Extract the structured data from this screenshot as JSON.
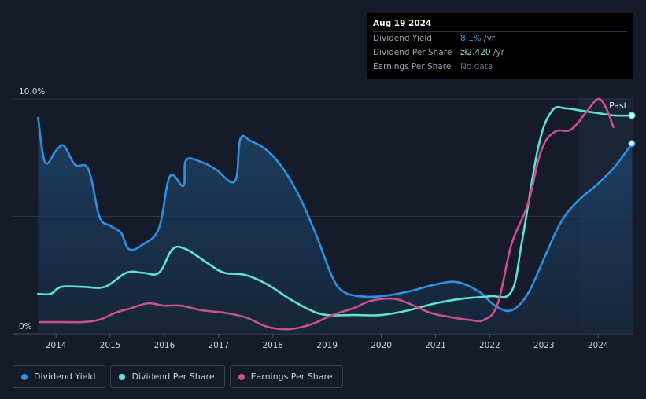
{
  "tooltip": {
    "date": "Aug 19 2024",
    "rows": [
      {
        "label": "Dividend Yield",
        "value": "8.1%",
        "unit": " /yr",
        "value_color": "#3aa0f2"
      },
      {
        "label": "Dividend Per Share",
        "value": "zł2.420",
        "unit": " /yr",
        "value_color": "#6ce6d6"
      },
      {
        "label": "Earnings Per Share",
        "value": "No data",
        "unit": "",
        "value_color": "#6c7380"
      }
    ]
  },
  "legend": [
    {
      "label": "Dividend Yield",
      "color": "#2f8fe0"
    },
    {
      "label": "Dividend Per Share",
      "color": "#5fe3cf"
    },
    {
      "label": "Earnings Per Share",
      "color": "#c94f8e"
    }
  ],
  "colors": {
    "background": "#151b28",
    "yield": "#2f8fe0",
    "yield_fill": "#1b3a5a",
    "dps": "#5fe3cf",
    "eps": "#c94f8e",
    "grid": "#3a4150",
    "past_band": "#1a2738"
  },
  "chart_data": {
    "type": "line",
    "title": "",
    "xlabel": "",
    "ylabel": "",
    "ylim": [
      0,
      10
    ],
    "xlim": [
      2013.65,
      2024.65
    ],
    "y_tick_labels": [
      {
        "value": 10,
        "label": "10.0%"
      },
      {
        "value": 0,
        "label": "0%"
      }
    ],
    "x_tick_labels": [
      "2014",
      "2015",
      "2016",
      "2017",
      "2018",
      "2019",
      "2020",
      "2021",
      "2022",
      "2023",
      "2024"
    ],
    "x_tick_values": [
      2014,
      2015,
      2016,
      2017,
      2018,
      2019,
      2020,
      2021,
      2022,
      2023,
      2024
    ],
    "annotation": {
      "label": "Past",
      "x_start": 2023.65
    },
    "series": [
      {
        "name": "Dividend Yield",
        "unit": "%",
        "area": true,
        "x": [
          2013.67,
          2013.8,
          2014.0,
          2014.15,
          2014.35,
          2014.6,
          2014.8,
          2015.0,
          2015.2,
          2015.35,
          2015.6,
          2015.9,
          2016.1,
          2016.35,
          2016.4,
          2016.7,
          2016.95,
          2017.3,
          2017.4,
          2017.6,
          2017.9,
          2018.2,
          2018.5,
          2018.8,
          2019.1,
          2019.3,
          2019.6,
          2020.0,
          2020.5,
          2021.0,
          2021.4,
          2021.8,
          2022.1,
          2022.4,
          2022.7,
          2023.0,
          2023.3,
          2023.6,
          2024.0,
          2024.3,
          2024.62
        ],
        "values": [
          9.2,
          7.3,
          7.8,
          8.0,
          7.2,
          7.0,
          5.0,
          4.6,
          4.3,
          3.6,
          3.8,
          4.5,
          6.7,
          6.3,
          7.4,
          7.3,
          7.0,
          6.5,
          8.3,
          8.2,
          7.8,
          7.0,
          5.8,
          4.2,
          2.4,
          1.8,
          1.6,
          1.6,
          1.8,
          2.1,
          2.2,
          1.8,
          1.2,
          1.0,
          1.7,
          3.2,
          4.7,
          5.6,
          6.4,
          7.1,
          8.1
        ]
      },
      {
        "name": "Dividend Per Share",
        "unit": "index",
        "x": [
          2013.67,
          2013.9,
          2014.1,
          2014.5,
          2014.9,
          2015.3,
          2015.6,
          2015.9,
          2016.15,
          2016.4,
          2016.8,
          2017.1,
          2017.5,
          2017.9,
          2018.3,
          2018.7,
          2019.0,
          2019.5,
          2020.0,
          2020.5,
          2021.0,
          2021.5,
          2022.0,
          2022.4,
          2022.6,
          2022.9,
          2023.15,
          2023.4,
          2023.7,
          2024.0,
          2024.3,
          2024.62
        ],
        "values": [
          1.7,
          1.7,
          2.0,
          2.0,
          2.0,
          2.6,
          2.6,
          2.6,
          3.6,
          3.6,
          3.0,
          2.6,
          2.5,
          2.1,
          1.5,
          1.0,
          0.8,
          0.8,
          0.8,
          1.0,
          1.3,
          1.5,
          1.6,
          1.8,
          4.0,
          8.0,
          9.5,
          9.6,
          9.5,
          9.4,
          9.3,
          9.3
        ]
      },
      {
        "name": "Earnings Per Share",
        "unit": "index",
        "x": [
          2013.7,
          2014.2,
          2014.5,
          2014.8,
          2015.1,
          2015.4,
          2015.7,
          2016.0,
          2016.3,
          2016.7,
          2017.1,
          2017.5,
          2017.9,
          2018.3,
          2018.7,
          2019.1,
          2019.5,
          2019.8,
          2020.2,
          2020.5,
          2020.9,
          2021.3,
          2021.6,
          2021.9,
          2022.15,
          2022.4,
          2022.7,
          2022.95,
          2023.2,
          2023.5,
          2023.8,
          2024.0,
          2024.15,
          2024.28
        ],
        "values": [
          0.5,
          0.5,
          0.5,
          0.6,
          0.9,
          1.1,
          1.3,
          1.2,
          1.2,
          1.0,
          0.9,
          0.7,
          0.3,
          0.2,
          0.4,
          0.8,
          1.1,
          1.4,
          1.5,
          1.3,
          0.9,
          0.7,
          0.6,
          0.6,
          1.3,
          3.8,
          5.5,
          7.8,
          8.6,
          8.7,
          9.5,
          10.0,
          9.6,
          8.8
        ]
      }
    ]
  }
}
